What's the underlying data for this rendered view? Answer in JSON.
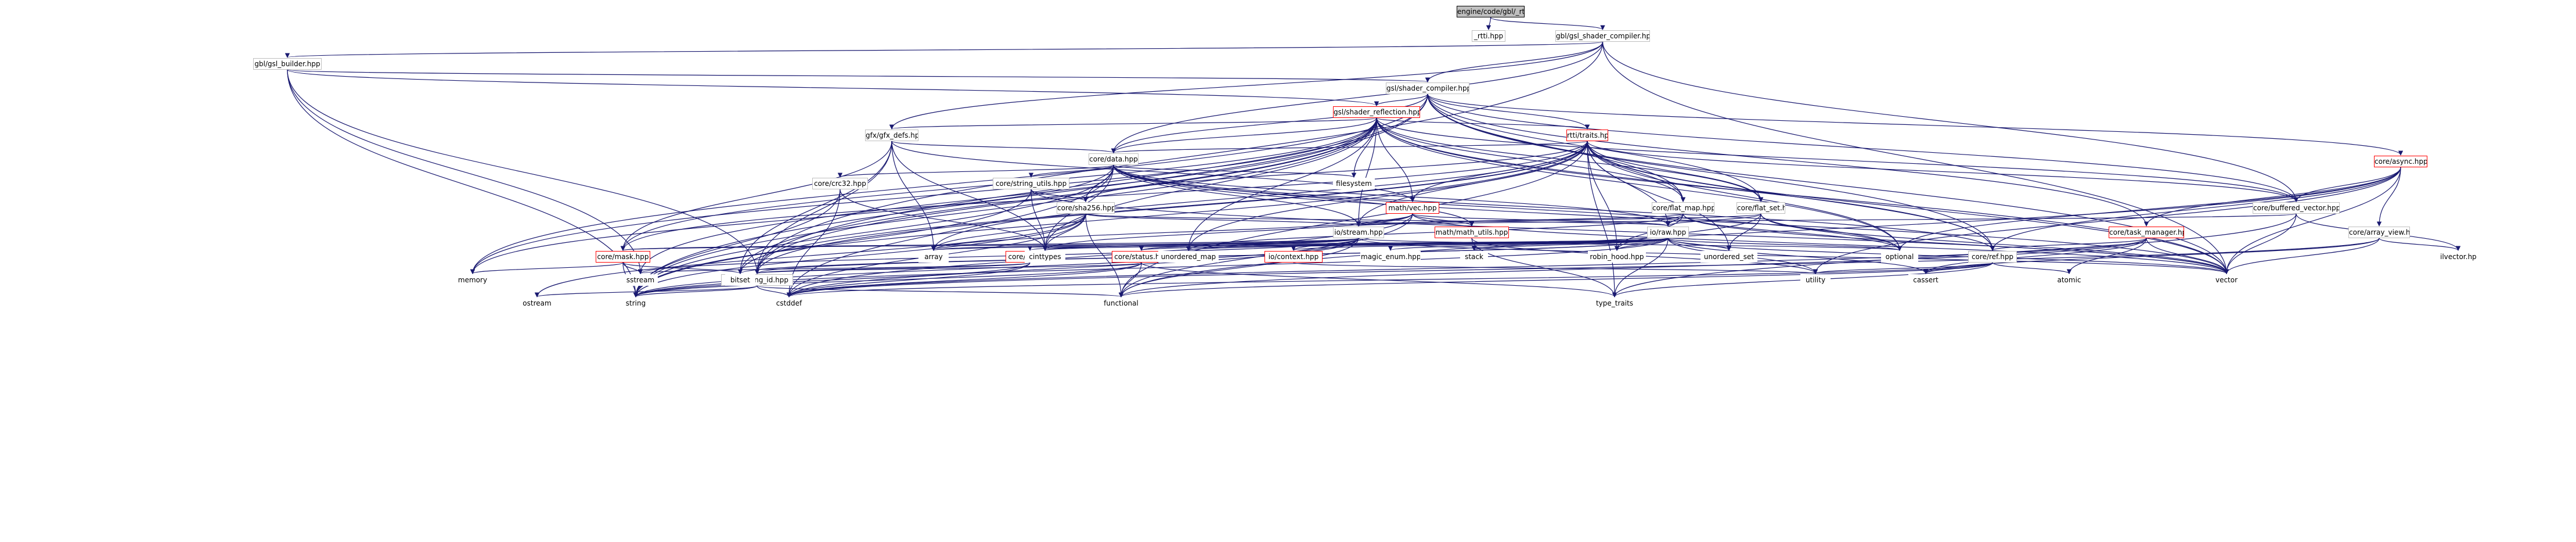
{
  "graph": {
    "colors": {
      "edge": "#191970",
      "box_border": "#bfbfbf",
      "incomplete_border": "#ff0000",
      "root_fill": "#bfbfbf"
    },
    "nodes": {
      "root": "engine/code/gbl/_rtti.cpp",
      "rtti_hpp": "_rtti.hpp",
      "gsl_shader_compiler_hpp": "gbl/gsl_shader_compiler.hpp",
      "gsl_builder": "gbl/gsl_builder.hpp",
      "shader_compiler": "gsl/shader_compiler.hpp",
      "shader_reflection": "gsl/shader_reflection.hpp",
      "gfx_defs": "gfx/gfx_defs.hpp",
      "rtti_traits": "rtti/traits.hpp",
      "core_data": "core/data.hpp",
      "core_crc32": "core/crc32.hpp",
      "core_string_utils": "core/string_utils.hpp",
      "core_sha256": "core/sha256.hpp",
      "filesystem": "filesystem",
      "math_vec": "math/vec.hpp",
      "math_utils": "math/math_utils.hpp",
      "core_flat_map": "core/flat_map.hpp",
      "core_flat_set": "core/flat_set.hpp",
      "io_stream": "io/stream.hpp",
      "io_raw": "io/raw.hpp",
      "core_async": "core/async.hpp",
      "core_buffered_vector": "core/buffered_vector.hpp",
      "core_task_manager": "core/task_manager.hpp",
      "core_array_view": "core/array_view.hpp",
      "core_mask": "core/mask.hpp",
      "core_log": "core/log.hpp",
      "core_status": "core/status.hpp",
      "io_context": "io/context.hpp",
      "core_ref": "core/ref.hpp",
      "core_string_id": "core/string_id.hpp",
      "cinttypes": "cinttypes",
      "array": "array",
      "unordered_map": "unordered_map",
      "magic_enum": "magic_enum.hpp",
      "stack": "stack",
      "robin_hood": "robin_hood.hpp",
      "unordered_set": "unordered_set",
      "optional": "optional",
      "memory": "memory",
      "sstream": "sstream",
      "bitset": "bitset",
      "utility": "utility",
      "cassert": "cassert",
      "atomic": "atomic",
      "vector": "vector",
      "ostream": "ostream",
      "string": "string",
      "cstddef": "cstddef",
      "functional": "functional",
      "type_traits": "type_traits",
      "ilvector": "ilvector.hpp"
    }
  }
}
